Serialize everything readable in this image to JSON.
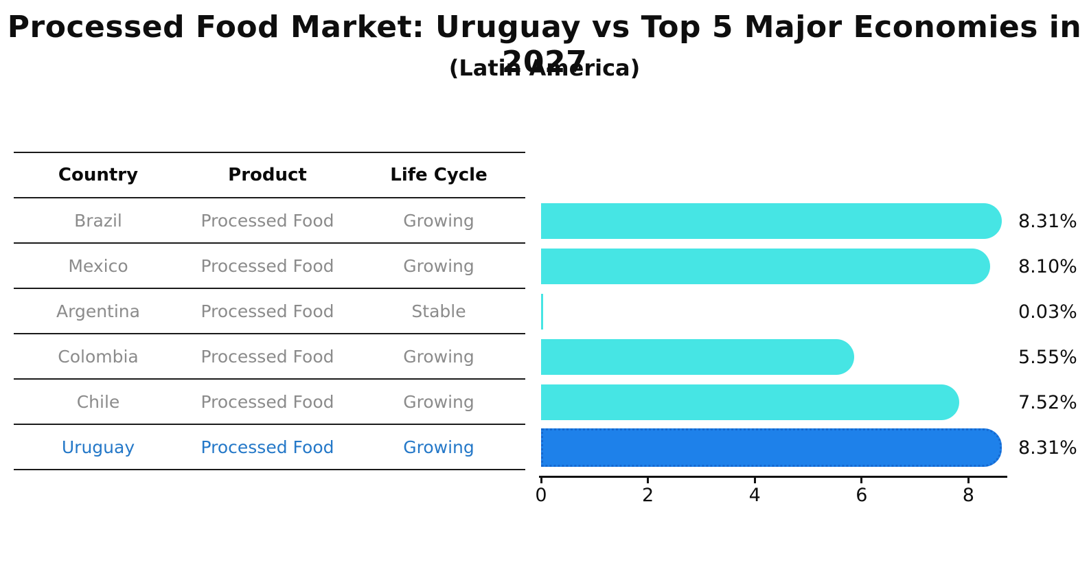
{
  "title": "Processed Food Market: Uruguay vs Top 5 Major Economies in 2027",
  "subtitle": "(Latin America)",
  "table": {
    "headers": [
      "Country",
      "Product",
      "Life Cycle"
    ],
    "rows": [
      {
        "country": "Brazil",
        "product": "Processed Food",
        "life_cycle": "Growing",
        "highlight": false
      },
      {
        "country": "Mexico",
        "product": "Processed Food",
        "life_cycle": "Growing",
        "highlight": false
      },
      {
        "country": "Argentina",
        "product": "Processed Food",
        "life_cycle": "Stable",
        "highlight": false
      },
      {
        "country": "Colombia",
        "product": "Processed Food",
        "life_cycle": "Growing",
        "highlight": false
      },
      {
        "country": "Chile",
        "product": "Processed Food",
        "life_cycle": "Growing",
        "highlight": false
      },
      {
        "country": "Uruguay",
        "product": "Processed Food",
        "life_cycle": "Growing",
        "highlight": true
      }
    ]
  },
  "chart_data": {
    "type": "bar",
    "orientation": "horizontal",
    "title": "Processed Food Market: Uruguay vs Top 5 Major Economies in 2027",
    "subtitle": "(Latin America)",
    "categories": [
      "Brazil",
      "Mexico",
      "Argentina",
      "Colombia",
      "Chile",
      "Uruguay"
    ],
    "values": [
      8.31,
      8.1,
      0.03,
      5.55,
      7.52,
      8.31
    ],
    "value_labels": [
      "8.31%",
      "8.10%",
      "0.03%",
      "5.55%",
      "7.52%",
      "8.31%"
    ],
    "xlabel": "",
    "ylabel": "",
    "xlim": [
      0,
      8.7
    ],
    "xticks": [
      0,
      2,
      4,
      6,
      8
    ],
    "grid": false,
    "legend": "none",
    "bar_color": "#46e5e4",
    "highlight_bar_color": "#1e81ea",
    "highlight_index": 5,
    "highlight_style": "dotted-border"
  },
  "colors": {
    "title_text": "#0e0e0e",
    "table_header_text": "#0a0a0a",
    "table_row_text": "#8b8b8b",
    "highlight_text": "#2478c8",
    "table_line": "#1a1a1a",
    "axis": "#111111",
    "bar": "#46e5e4",
    "highlight_bar": "#1e81ea"
  }
}
